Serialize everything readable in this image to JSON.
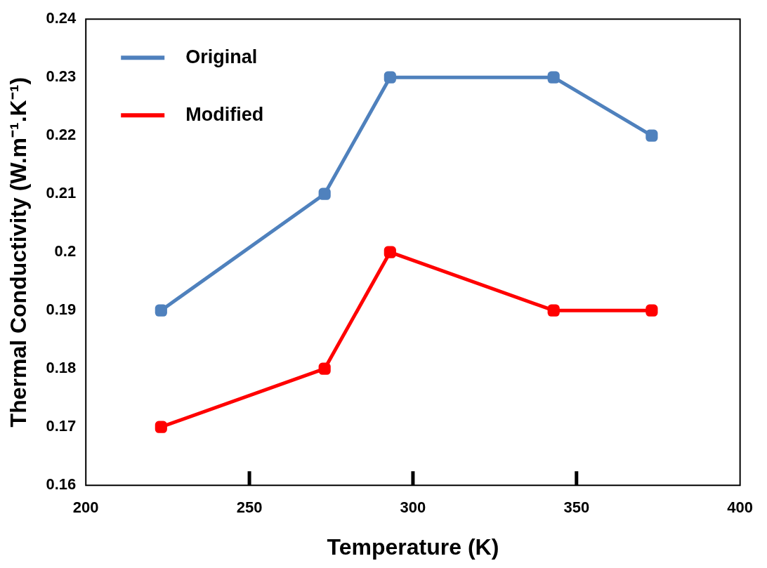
{
  "chart_data": {
    "type": "line",
    "xlabel": "Temperature (K)",
    "ylabel": "Thermal Conductivity (W.m⁻¹.K⁻¹)",
    "xlim": [
      200,
      400
    ],
    "xticks": [
      200,
      250,
      300,
      350,
      400
    ],
    "ylim": [
      0.16,
      0.24
    ],
    "yticks": [
      0.16,
      0.17,
      0.18,
      0.19,
      0.2,
      0.21,
      0.22,
      0.23,
      0.24
    ],
    "grid": false,
    "legend": "top left",
    "marker": "square",
    "line_style": "solid",
    "series": [
      {
        "name": "Original",
        "color": "#4f81bd",
        "x": [
          223,
          273,
          293,
          343,
          373
        ],
        "values": [
          0.19,
          0.21,
          0.23,
          0.23,
          0.22
        ]
      },
      {
        "name": "Modified",
        "color": "#ff0000",
        "x": [
          223,
          273,
          293,
          343,
          373
        ],
        "values": [
          0.17,
          0.18,
          0.2,
          0.19,
          0.19
        ]
      }
    ]
  }
}
